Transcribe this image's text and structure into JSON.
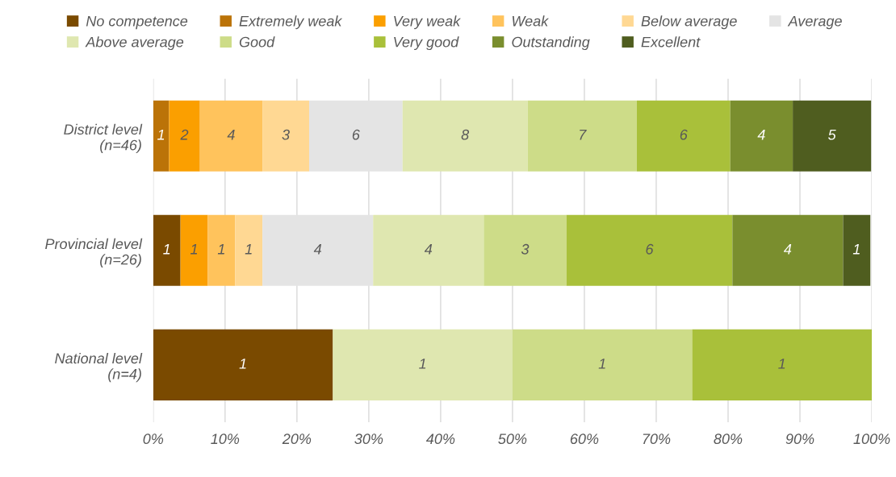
{
  "chart_data": {
    "type": "bar",
    "orientation": "horizontal",
    "stacked": true,
    "categories": [
      "District level\n(n=46)",
      "Provincial level\n(n=26)",
      "National level\n(n=4)"
    ],
    "xlim": [
      0,
      100
    ],
    "xticks": [
      {
        "value": 0,
        "label": "0%"
      },
      {
        "value": 10,
        "label": "10%"
      },
      {
        "value": 20,
        "label": "20%"
      },
      {
        "value": 30,
        "label": "30%"
      },
      {
        "value": 40,
        "label": "40%"
      },
      {
        "value": 50,
        "label": "50%"
      },
      {
        "value": 60,
        "label": "60%"
      },
      {
        "value": 70,
        "label": "70%"
      },
      {
        "value": 80,
        "label": "80%"
      },
      {
        "value": 90,
        "label": "90%"
      },
      {
        "value": 100,
        "label": "100%"
      }
    ],
    "grid": "x",
    "legend": "top",
    "series": [
      {
        "name": "No competence",
        "color": "#7a4a00",
        "values": [
          null,
          3.8,
          25
        ]
      },
      {
        "name": "Extremely weak",
        "color": "#bb7308",
        "values": [
          2.2,
          null,
          null
        ]
      },
      {
        "name": "Very weak",
        "color": "#fb9f00",
        "values": [
          4.3,
          3.8,
          null
        ]
      },
      {
        "name": "Weak",
        "color": "#ffc35c",
        "values": [
          8.7,
          3.8,
          null
        ]
      },
      {
        "name": "Below average",
        "color": "#ffd893",
        "values": [
          6.5,
          3.8,
          null
        ]
      },
      {
        "name": "Average",
        "color": "#e4e4e4",
        "values": [
          13.0,
          15.4,
          null
        ]
      },
      {
        "name": "Above average",
        "color": "#dfe7b0",
        "values": [
          17.4,
          15.4,
          25
        ]
      },
      {
        "name": "Good",
        "color": "#cddc88",
        "values": [
          15.2,
          11.5,
          25
        ]
      },
      {
        "name": "Very good",
        "color": "#a9c03a",
        "values": [
          13.0,
          23.1,
          25
        ]
      },
      {
        "name": "Outstanding",
        "color": "#7a8e2e",
        "values": [
          8.7,
          15.4,
          null
        ]
      },
      {
        "name": "Excellent",
        "color": "#4f5d1f",
        "values": [
          10.9,
          3.8,
          null
        ]
      }
    ],
    "annotations": [
      "1",
      "2",
      "4",
      "3",
      "6",
      "8",
      "7",
      "6",
      "4",
      "5",
      "1",
      "1",
      "1",
      "1",
      "4",
      "4",
      "3",
      "6",
      "4",
      "1",
      "1",
      "1",
      "1",
      "1"
    ]
  }
}
